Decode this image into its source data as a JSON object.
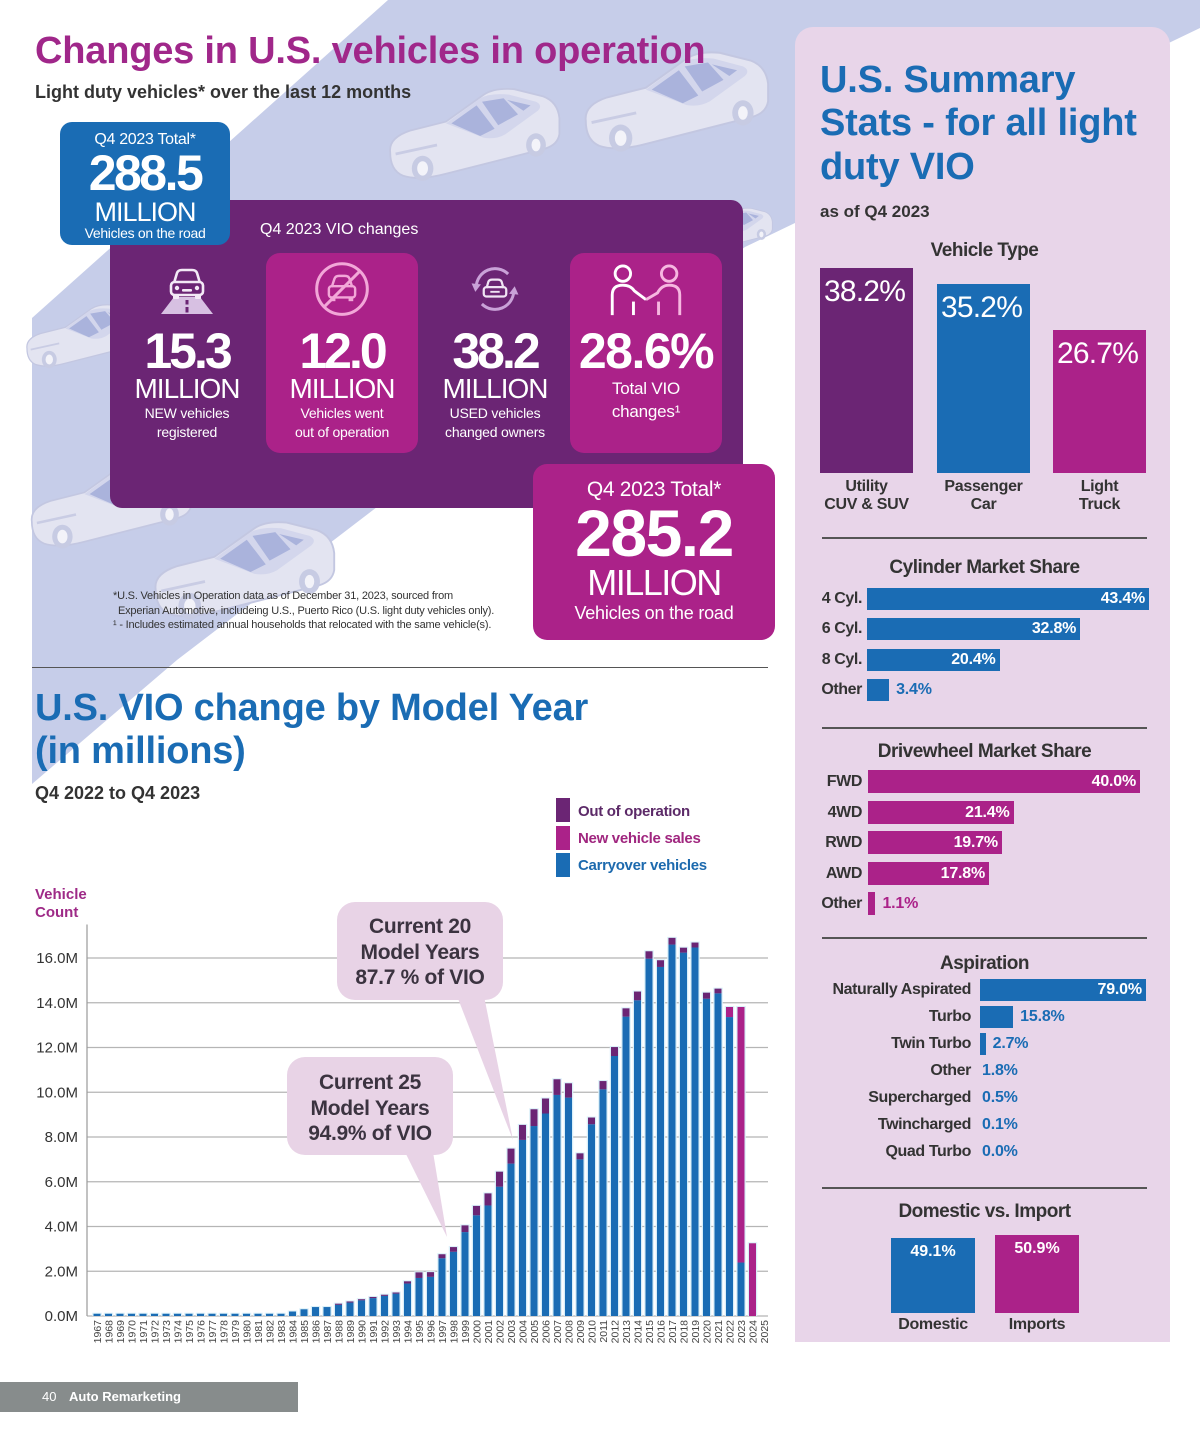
{
  "header": {
    "title": "Changes in U.S. vehicles in operation",
    "subtitle": "Light duty vehicles* over the last 12 months"
  },
  "start_total": {
    "label": "Q4 2023 Total*",
    "value": "288.5",
    "unit": "MILLION",
    "caption": "Vehicles on the road"
  },
  "vio_changes": {
    "title": "Q4 2023 VIO changes",
    "stats": [
      {
        "icon": "car-on-road-icon",
        "value": "15.3",
        "unit": "MILLION",
        "caption": [
          "NEW vehicles",
          "registered"
        ]
      },
      {
        "icon": "no-car-icon",
        "value": "12.0",
        "unit": "MILLION",
        "caption": [
          "Vehicles went",
          "out of operation"
        ]
      },
      {
        "icon": "car-exchange-icon",
        "value": "38.2",
        "unit": "MILLION",
        "caption": [
          "USED vehicles",
          "changed owners"
        ]
      },
      {
        "icon": "handshake-icon",
        "value": "28.6%",
        "caption": [
          "Total VIO",
          "changes¹"
        ]
      }
    ]
  },
  "end_total": {
    "label": "Q4 2023 Total*",
    "value": "285.2",
    "unit": "MILLION",
    "caption": "Vehicles on the road"
  },
  "footnotes": [
    "*U.S. Vehicles in Operation data as of December 31, 2023, sourced from",
    "Experian Automotive, includeing U.S., Puerto Rico (U.S. light duty vehicles only).",
    "¹ - Includes estimated annual households that relocated with the same vehicle(s)."
  ],
  "summary": {
    "title": "U.S. Summary Stats - for all light duty VIO",
    "as_of": "as of Q4 2023"
  },
  "footer": {
    "page_number": "40",
    "publication": "Auto Remarketing"
  },
  "colors": {
    "purple": "#6b2574",
    "magenta": "#ab2289",
    "blue": "#1a6cb4",
    "title_magenta": "#a0278a",
    "panel_background": "#e8d5e9",
    "road_band": "#c6cde9",
    "callout": "#e8d3e6"
  },
  "chart_data": [
    {
      "type": "bar",
      "stacked": true,
      "title": "U.S. VIO change by Model Year (in millions)",
      "subtitle": "Q4 2022 to Q4 2023",
      "xlabel": "",
      "ylabel": "Vehicle Count",
      "ylim": [
        0,
        17.5
      ],
      "yticks": {
        "values": [
          0,
          2,
          4,
          6,
          8,
          10,
          12,
          14,
          16
        ],
        "labels": [
          "0.0M",
          "2.0M",
          "4.0M",
          "6.0M",
          "8.0M",
          "10.0M",
          "12.0M",
          "14.0M",
          "16.0M"
        ]
      },
      "grid": true,
      "legend": "top-right",
      "categories": [
        "1967",
        "1968",
        "1969",
        "1970",
        "1971",
        "1972",
        "1973",
        "1974",
        "1975",
        "1976",
        "1977",
        "1978",
        "1979",
        "1980",
        "1981",
        "1982",
        "1983",
        "1984",
        "1985",
        "1986",
        "1987",
        "1988",
        "1989",
        "1990",
        "1991",
        "1992",
        "1993",
        "1994",
        "1995",
        "1996",
        "1997",
        "1998",
        "1999",
        "2000",
        "2001",
        "2002",
        "2003",
        "2004",
        "2005",
        "2006",
        "2007",
        "2008",
        "2009",
        "2010",
        "2011",
        "2012",
        "2013",
        "2014",
        "2015",
        "2016",
        "2017",
        "2018",
        "2019",
        "2020",
        "2021",
        "2022",
        "2023",
        "2024",
        "2025"
      ],
      "series": [
        {
          "name": "Carryover vehicles",
          "color": "#1a6cb4",
          "values": [
            0.1,
            0.1,
            0.1,
            0.1,
            0.1,
            0.1,
            0.1,
            0.1,
            0.1,
            0.1,
            0.1,
            0.1,
            0.1,
            0.1,
            0.1,
            0.1,
            0.1,
            0.2,
            0.3,
            0.4,
            0.4,
            0.5,
            0.6,
            0.7,
            0.8,
            0.9,
            1.0,
            1.45,
            1.7,
            1.75,
            2.58,
            2.87,
            3.75,
            4.5,
            4.94,
            5.78,
            6.81,
            7.87,
            8.49,
            9.05,
            9.88,
            9.76,
            7.0,
            8.57,
            10.13,
            11.62,
            13.38,
            14.11,
            15.97,
            15.6,
            16.6,
            16.24,
            16.47,
            14.18,
            14.42,
            13.36,
            2.39,
            0,
            0
          ]
        },
        {
          "name": "New vehicle sales",
          "color": "#ab2289",
          "values": [
            0,
            0,
            0,
            0,
            0,
            0,
            0,
            0,
            0,
            0,
            0,
            0,
            0,
            0,
            0,
            0,
            0,
            0,
            0,
            0,
            0,
            0,
            0,
            0,
            0,
            0,
            0,
            0,
            0,
            0,
            0,
            0,
            0,
            0,
            0,
            0,
            0,
            0,
            0,
            0,
            0,
            0,
            0,
            0,
            0,
            0,
            0,
            0,
            0,
            0,
            0,
            0,
            0,
            0,
            0,
            0.45,
            11.42,
            3.25,
            0
          ]
        },
        {
          "name": "Out of operation",
          "color": "#6b2574",
          "values": [
            0,
            0,
            0,
            0,
            0,
            0,
            0,
            0,
            0,
            0,
            0,
            0,
            0,
            0,
            0,
            0,
            0,
            0,
            0,
            0,
            0,
            0.05,
            0.05,
            0.05,
            0.05,
            0.05,
            0.05,
            0.1,
            0.25,
            0.21,
            0.18,
            0.21,
            0.3,
            0.42,
            0.54,
            0.67,
            0.67,
            0.67,
            0.75,
            0.67,
            0.7,
            0.64,
            0.27,
            0.3,
            0.37,
            0.4,
            0.37,
            0.39,
            0.33,
            0.3,
            0.3,
            0.22,
            0.22,
            0.27,
            0.21,
            0,
            0,
            0,
            0
          ]
        }
      ],
      "annotations": [
        {
          "lines": [
            "Current 20",
            "Model Years",
            "87.7 % of VIO"
          ]
        },
        {
          "lines": [
            "Current 25",
            "Model Years",
            "94.9% of VIO"
          ]
        }
      ]
    },
    {
      "type": "bar",
      "title": "Vehicle Type",
      "categories": [
        "Utility CUV & SUV",
        "Passenger Car",
        "Light Truck"
      ],
      "category_lines": [
        [
          "Utility",
          "CUV & SUV"
        ],
        [
          "Passenger",
          "Car"
        ],
        [
          "Light",
          "Truck"
        ]
      ],
      "values": [
        38.2,
        35.2,
        26.7
      ],
      "value_labels": [
        "38.2%",
        "35.2%",
        "26.7%"
      ],
      "colors": [
        "#6b2574",
        "#1a6cb4",
        "#ab2289"
      ],
      "unit": "%"
    },
    {
      "type": "bar",
      "orientation": "horizontal",
      "title": "Cylinder Market Share",
      "categories": [
        "4 Cyl.",
        "6 Cyl.",
        "8 Cyl.",
        "Other"
      ],
      "values": [
        43.4,
        32.8,
        20.4,
        3.4
      ],
      "value_labels": [
        "43.4%",
        "32.8%",
        "20.4%",
        "3.4%"
      ],
      "color": "#1a6cb4",
      "unit": "%"
    },
    {
      "type": "bar",
      "orientation": "horizontal",
      "title": "Drivewheel Market Share",
      "categories": [
        "FWD",
        "4WD",
        "RWD",
        "AWD",
        "Other"
      ],
      "values": [
        40.0,
        21.4,
        19.7,
        17.8,
        1.1
      ],
      "value_labels": [
        "40.0%",
        "21.4%",
        "19.7%",
        "17.8%",
        "1.1%"
      ],
      "color": "#ab2289",
      "unit": "%"
    },
    {
      "type": "bar",
      "orientation": "horizontal",
      "title": "Aspiration",
      "categories": [
        "Naturally Aspirated",
        "Turbo",
        "Twin Turbo",
        "Other",
        "Supercharged",
        "Twincharged",
        "Quad Turbo"
      ],
      "values": [
        79.0,
        15.8,
        2.7,
        1.8,
        0.5,
        0.1,
        0.0
      ],
      "value_labels": [
        "79.0%",
        "15.8%",
        "2.7%",
        "1.8%",
        "0.5%",
        "0.1%",
        "0.0%"
      ],
      "color": "#1a6cb4",
      "unit": "%"
    },
    {
      "type": "bar",
      "title": "Domestic vs. Import",
      "categories": [
        "Domestic",
        "Imports"
      ],
      "values": [
        49.1,
        50.9
      ],
      "value_labels": [
        "49.1%",
        "50.9%"
      ],
      "colors": [
        "#1a6cb4",
        "#ab2289"
      ],
      "unit": "%"
    }
  ]
}
